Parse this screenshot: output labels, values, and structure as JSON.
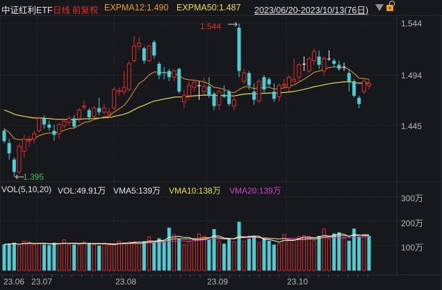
{
  "header": {
    "title": "中证红利ETF",
    "period": "日线",
    "adjust": "前复权",
    "ema12_label": "EXPMA12:1.490",
    "ema50_label": "EXPMA50:1.487",
    "date_range": "2023/06/20-2023/10/13(76日)",
    "dropdown_icon": "triangle-down",
    "lock_icon": "unlocked-padlock"
  },
  "price_axis": {
    "ticks": [
      "1.544",
      "1.494",
      "1.445"
    ]
  },
  "annotations": {
    "high": "1.544",
    "low": "1.395"
  },
  "volume_header": {
    "name": "VOL(5,10,20)",
    "vol": "VOL:49.91万",
    "vma5": "VMA5:139万",
    "vma10": "VMA10:138万",
    "vma20": "VMA20:139万"
  },
  "volume_axis": {
    "ticks": [
      "300万",
      "200万",
      "100万"
    ]
  },
  "x_axis": {
    "ticks": [
      "23.06",
      "23.07",
      "23.08",
      "23.09",
      "23.10"
    ]
  },
  "colors": {
    "background": "#17181c",
    "up": "#e0312f",
    "down": "#4fcbd3",
    "ema12": "#e8a030",
    "ema50": "#e8e050",
    "vma5": "#ffffff",
    "vma10": "#e8e050",
    "vma20": "#d040d0",
    "grid": "#3a3c42"
  },
  "chart_data": [
    {
      "type": "candlestick",
      "title": "中证红利ETF 日线 前复权",
      "x_range": "2023/06/20-2023/10/13",
      "trading_days": 76,
      "ylim": [
        1.39,
        1.55
      ],
      "y_ticks": [
        1.445,
        1.494,
        1.544
      ],
      "high_marker": 1.544,
      "low_marker": 1.395,
      "overlays": [
        {
          "name": "EXPMA12",
          "last": 1.49
        },
        {
          "name": "EXPMA50",
          "last": 1.487
        }
      ],
      "candles_approx": [
        {
          "o": 1.44,
          "c": 1.43,
          "h": 1.442,
          "l": 1.428
        },
        {
          "o": 1.428,
          "c": 1.418,
          "h": 1.432,
          "l": 1.412
        },
        {
          "o": 1.412,
          "c": 1.4,
          "h": 1.414,
          "l": 1.395
        },
        {
          "o": 1.4,
          "c": 1.425,
          "h": 1.428,
          "l": 1.398
        },
        {
          "o": 1.42,
          "c": 1.432,
          "h": 1.436,
          "l": 1.414
        },
        {
          "o": 1.43,
          "c": 1.431,
          "h": 1.435,
          "l": 1.424
        },
        {
          "o": 1.432,
          "c": 1.437,
          "h": 1.44,
          "l": 1.428
        },
        {
          "o": 1.44,
          "c": 1.452,
          "h": 1.453,
          "l": 1.438
        },
        {
          "o": 1.452,
          "c": 1.446,
          "h": 1.455,
          "l": 1.442
        },
        {
          "o": 1.446,
          "c": 1.443,
          "h": 1.45,
          "l": 1.44
        },
        {
          "o": 1.44,
          "c": 1.436,
          "h": 1.446,
          "l": 1.43
        },
        {
          "o": 1.437,
          "c": 1.446,
          "h": 1.448,
          "l": 1.432
        },
        {
          "o": 1.445,
          "c": 1.449,
          "h": 1.451,
          "l": 1.442
        },
        {
          "o": 1.448,
          "c": 1.452,
          "h": 1.455,
          "l": 1.445
        },
        {
          "o": 1.452,
          "c": 1.444,
          "h": 1.455,
          "l": 1.442
        },
        {
          "o": 1.452,
          "c": 1.46,
          "h": 1.462,
          "l": 1.448
        },
        {
          "o": 1.463,
          "c": 1.464,
          "h": 1.469,
          "l": 1.46
        },
        {
          "o": 1.46,
          "c": 1.453,
          "h": 1.462,
          "l": 1.45
        },
        {
          "o": 1.454,
          "c": 1.462,
          "h": 1.464,
          "l": 1.452
        },
        {
          "o": 1.462,
          "c": 1.458,
          "h": 1.472,
          "l": 1.455
        },
        {
          "o": 1.458,
          "c": 1.462,
          "h": 1.466,
          "l": 1.456
        },
        {
          "o": 1.456,
          "c": 1.458,
          "h": 1.462,
          "l": 1.452
        },
        {
          "o": 1.462,
          "c": 1.48,
          "h": 1.482,
          "l": 1.46
        },
        {
          "o": 1.478,
          "c": 1.479,
          "h": 1.482,
          "l": 1.474
        },
        {
          "o": 1.478,
          "c": 1.482,
          "h": 1.498,
          "l": 1.475
        },
        {
          "o": 1.48,
          "c": 1.505,
          "h": 1.508,
          "l": 1.478
        },
        {
          "o": 1.508,
          "c": 1.522,
          "h": 1.532,
          "l": 1.506
        },
        {
          "o": 1.522,
          "c": 1.525,
          "h": 1.531,
          "l": 1.518
        },
        {
          "o": 1.52,
          "c": 1.508,
          "h": 1.522,
          "l": 1.505
        },
        {
          "o": 1.508,
          "c": 1.522,
          "h": 1.524,
          "l": 1.506
        },
        {
          "o": 1.526,
          "c": 1.513,
          "h": 1.528,
          "l": 1.51
        },
        {
          "o": 1.505,
          "c": 1.494,
          "h": 1.507,
          "l": 1.49
        },
        {
          "o": 1.497,
          "c": 1.496,
          "h": 1.502,
          "l": 1.49
        },
        {
          "o": 1.498,
          "c": 1.492,
          "h": 1.5,
          "l": 1.488
        },
        {
          "o": 1.492,
          "c": 1.498,
          "h": 1.5,
          "l": 1.488
        },
        {
          "o": 1.5,
          "c": 1.478,
          "h": 1.501,
          "l": 1.476
        },
        {
          "o": 1.468,
          "c": 1.474,
          "h": 1.48,
          "l": 1.462
        },
        {
          "o": 1.474,
          "c": 1.484,
          "h": 1.488,
          "l": 1.47
        },
        {
          "o": 1.482,
          "c": 1.487,
          "h": 1.49,
          "l": 1.478
        },
        {
          "o": 1.484,
          "c": 1.484,
          "h": 1.488,
          "l": 1.47
        },
        {
          "o": 1.478,
          "c": 1.483,
          "h": 1.492,
          "l": 1.475
        },
        {
          "o": 1.483,
          "c": 1.474,
          "h": 1.492,
          "l": 1.472
        },
        {
          "o": 1.476,
          "c": 1.464,
          "h": 1.478,
          "l": 1.46
        },
        {
          "o": 1.465,
          "c": 1.478,
          "h": 1.48,
          "l": 1.46
        },
        {
          "o": 1.475,
          "c": 1.473,
          "h": 1.484,
          "l": 1.472
        },
        {
          "o": 1.478,
          "c": 1.466,
          "h": 1.48,
          "l": 1.464
        },
        {
          "o": 1.464,
          "c": 1.47,
          "h": 1.474,
          "l": 1.46
        },
        {
          "o": 1.54,
          "c": 1.498,
          "h": 1.544,
          "l": 1.492
        },
        {
          "o": 1.488,
          "c": 1.496,
          "h": 1.5,
          "l": 1.485
        },
        {
          "o": 1.496,
          "c": 1.484,
          "h": 1.498,
          "l": 1.48
        },
        {
          "o": 1.478,
          "c": 1.47,
          "h": 1.486,
          "l": 1.465
        },
        {
          "o": 1.469,
          "c": 1.488,
          "h": 1.49,
          "l": 1.467
        },
        {
          "o": 1.492,
          "c": 1.48,
          "h": 1.494,
          "l": 1.476
        },
        {
          "o": 1.49,
          "c": 1.485,
          "h": 1.492,
          "l": 1.482
        },
        {
          "o": 1.478,
          "c": 1.471,
          "h": 1.486,
          "l": 1.468
        },
        {
          "o": 1.473,
          "c": 1.484,
          "h": 1.486,
          "l": 1.468
        },
        {
          "o": 1.484,
          "c": 1.485,
          "h": 1.49,
          "l": 1.482
        },
        {
          "o": 1.482,
          "c": 1.492,
          "h": 1.494,
          "l": 1.478
        },
        {
          "o": 1.488,
          "c": 1.49,
          "h": 1.51,
          "l": 1.486
        },
        {
          "o": 1.492,
          "c": 1.504,
          "h": 1.506,
          "l": 1.488
        },
        {
          "o": 1.505,
          "c": 1.505,
          "h": 1.512,
          "l": 1.498
        },
        {
          "o": 1.498,
          "c": 1.51,
          "h": 1.512,
          "l": 1.496
        },
        {
          "o": 1.508,
          "c": 1.517,
          "h": 1.52,
          "l": 1.504
        },
        {
          "o": 1.512,
          "c": 1.504,
          "h": 1.518,
          "l": 1.5
        },
        {
          "o": 1.498,
          "c": 1.51,
          "h": 1.512,
          "l": 1.494
        },
        {
          "o": 1.51,
          "c": 1.51,
          "h": 1.518,
          "l": 1.508
        },
        {
          "o": 1.508,
          "c": 1.505,
          "h": 1.51,
          "l": 1.502
        },
        {
          "o": 1.504,
          "c": 1.5,
          "h": 1.508,
          "l": 1.498
        },
        {
          "o": 1.502,
          "c": 1.502,
          "h": 1.506,
          "l": 1.498
        },
        {
          "o": 1.496,
          "c": 1.488,
          "h": 1.5,
          "l": 1.478
        },
        {
          "o": 1.488,
          "c": 1.474,
          "h": 1.49,
          "l": 1.472
        },
        {
          "o": 1.472,
          "c": 1.466,
          "h": 1.474,
          "l": 1.462
        },
        {
          "o": 1.478,
          "c": 1.488,
          "h": 1.49,
          "l": 1.476
        },
        {
          "o": 1.484,
          "c": 1.486,
          "h": 1.49,
          "l": 1.48
        }
      ]
    },
    {
      "type": "bar",
      "title": "VOL(5,10,20)",
      "ylabel": "万",
      "y_ticks": [
        100,
        200,
        300
      ],
      "ylim": [
        0,
        320
      ],
      "last_vol": 49.91,
      "vma5_last": 139,
      "vma10_last": 138,
      "vma20_last": 139
    }
  ]
}
